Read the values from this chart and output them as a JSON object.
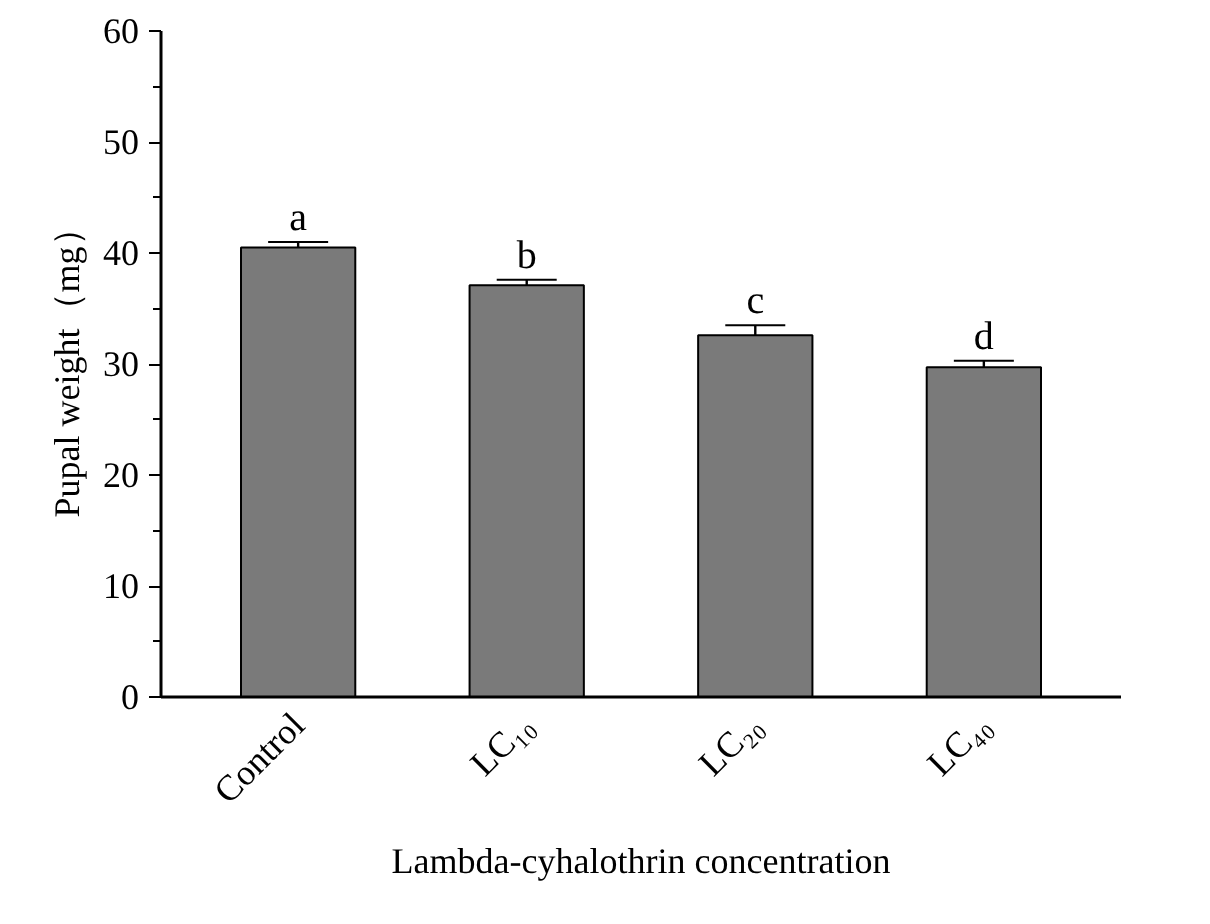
{
  "chart_data": {
    "type": "bar",
    "xlabel": "Lambda-cyhalothrin concentration",
    "ylabel": "Pupal weight（mg）",
    "categories": [
      "Control",
      "LC₁₀",
      "LC₂₀",
      "LC₄₀"
    ],
    "values": [
      40.5,
      37.1,
      32.6,
      29.7
    ],
    "errors": [
      0.5,
      0.5,
      0.9,
      0.6
    ],
    "color": "#7a7a7a",
    "ylim": [
      0,
      60
    ],
    "yticks": [
      0,
      10,
      20,
      30,
      40,
      50,
      60
    ],
    "grid": false,
    "annotations": [
      {
        "text": "a",
        "x": "Control",
        "y": 41.0
      },
      {
        "text": "b",
        "x": "LC₁₀",
        "y": 37.6
      },
      {
        "text": "c",
        "x": "LC₂₀",
        "y": 33.5
      },
      {
        "text": "d",
        "x": "LC₄₀",
        "y": 30.3
      }
    ]
  }
}
